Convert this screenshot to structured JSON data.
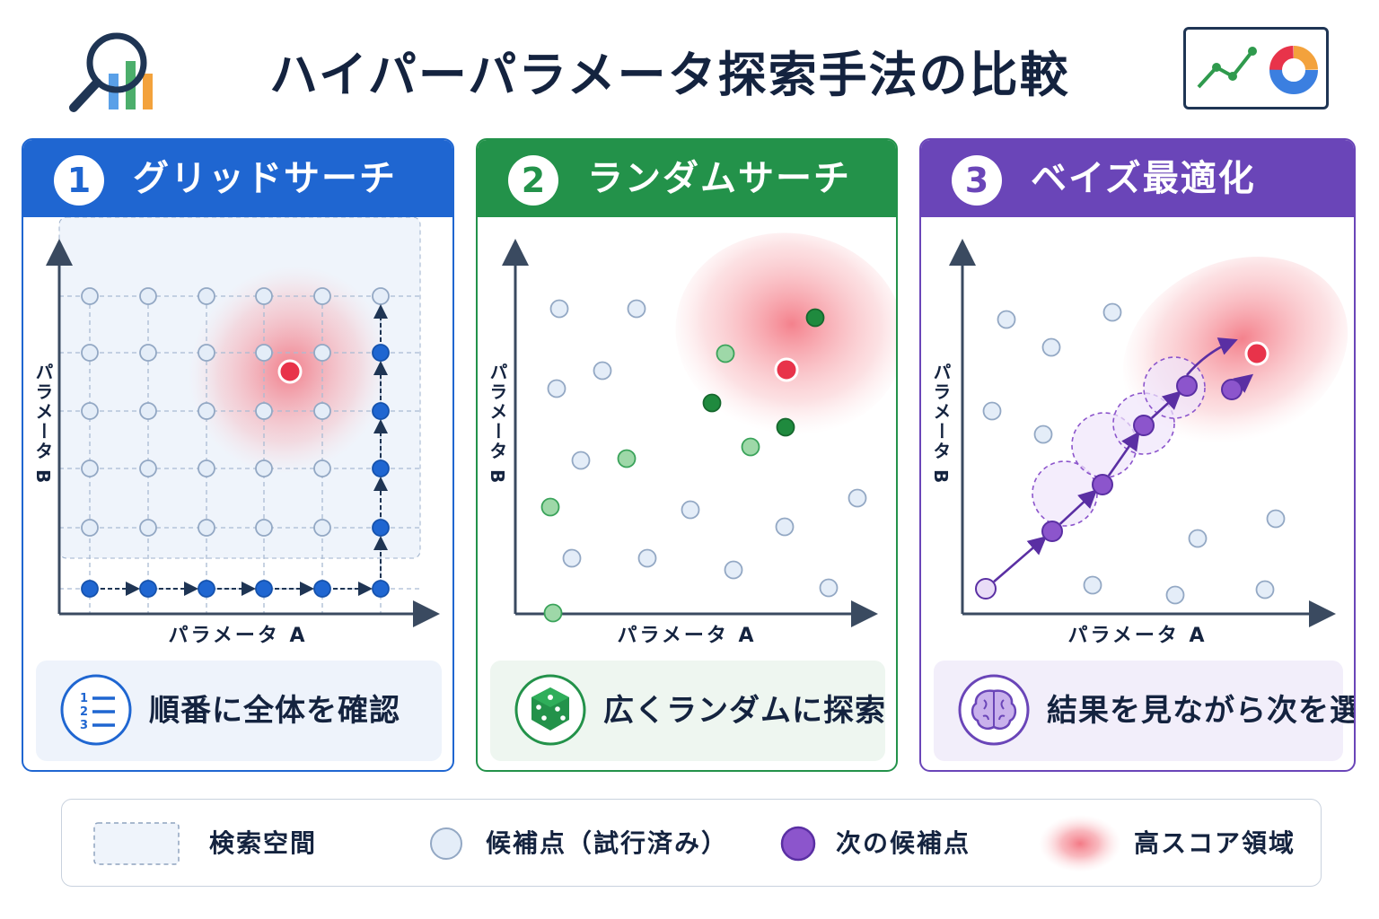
{
  "header": {
    "title": "ハイパーパラメータ探索手法の比較",
    "left_logo_icon": "magnifier-bar-chart-icon",
    "right_logo_icon": "line-and-donut-chart-icon"
  },
  "axis_labels": {
    "x": "パラメータ A",
    "y": "パラメータ B"
  },
  "panels": [
    {
      "number": "1",
      "title": "グリッドサーチ",
      "caption": "順番に全体を確認",
      "caption_icon": "numbered-list-icon",
      "color": "#1f66d1"
    },
    {
      "number": "2",
      "title": "ランダムサーチ",
      "caption": "広くランダムに探索",
      "caption_icon": "dice-icon",
      "color": "#23924a"
    },
    {
      "number": "3",
      "title": "ベイズ最適化",
      "caption": "結果を見ながら次を選ぶ",
      "caption_icon": "brain-icon",
      "color": "#6a45b8"
    }
  ],
  "legend": {
    "search_space": "検索空間",
    "tried_candidates": "候補点（試行済み）",
    "next_candidate": "次の候補点",
    "high_score_region": "高スコア領域"
  },
  "colors": {
    "candidate_fill": "#e4edf8",
    "candidate_stroke": "#93a8c4",
    "best_point": "#e8334a",
    "high_score": "#f26b78",
    "next_candidate": "#8c55cc"
  }
}
